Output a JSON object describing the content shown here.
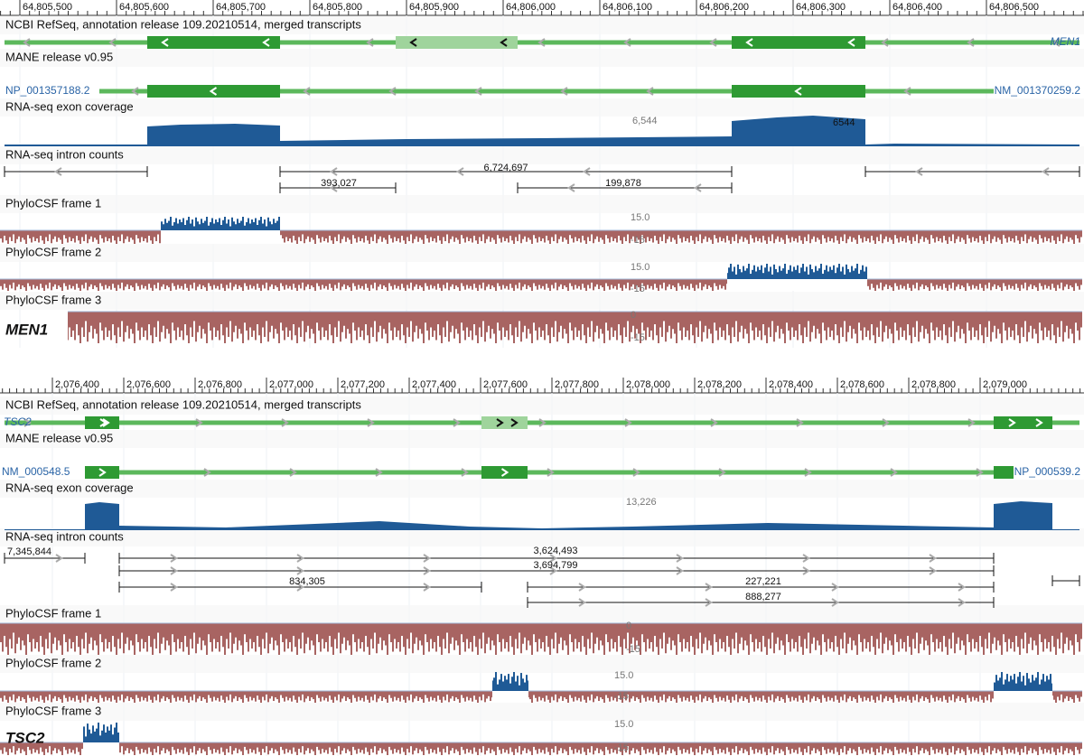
{
  "panels": [
    {
      "ruler": [
        "64,805,500",
        "64,805,600",
        "64,805,700",
        "64,805,800",
        "64,805,900",
        "64,806,000",
        "64,806,100",
        "64,806,200",
        "64,806,300",
        "64,806,400",
        "64,806,500"
      ],
      "refseq_title": "NCBI RefSeq, annotation release 109.20210514, merged transcripts",
      "transcript_label": "MEN1",
      "mane_title": "MANE release v0.95",
      "mane_labels": [
        "NP_001357188.2",
        "NM_001370259.2"
      ],
      "coverage_title": "RNA-seq exon coverage",
      "coverage_max": "6,544",
      "coverage_peak": "6544",
      "intron_title": "RNA-seq intron counts",
      "intron_counts": [
        "6,724,697",
        "393,027",
        "199,878"
      ],
      "phylo": [
        {
          "title": "PhyloCSF frame 1",
          "scale": [
            "15.0",
            "-15"
          ]
        },
        {
          "title": "PhyloCSF frame 2",
          "scale": [
            "15.0",
            "-15"
          ]
        },
        {
          "title": "PhyloCSF frame 3",
          "scale": [
            "0",
            "-15"
          ]
        }
      ],
      "gene": "MEN1"
    },
    {
      "ruler": [
        "2,076,400",
        "2,076,600",
        "2,076,800",
        "2,077,000",
        "2,077,200",
        "2,077,400",
        "2,077,600",
        "2,077,800",
        "2,078,000",
        "2,078,200",
        "2,078,400",
        "2,078,600",
        "2,078,800",
        "2,079,000"
      ],
      "refseq_title": "NCBI RefSeq, annotation release 109.20210514, merged transcripts",
      "transcript_label": "TSC2",
      "mane_title": "MANE release v0.95",
      "mane_labels": [
        "NM_000548.5",
        "NP_000539.2"
      ],
      "coverage_title": "RNA-seq exon coverage",
      "coverage_max": "13,226",
      "intron_title": "RNA-seq intron counts",
      "intron_counts": [
        "7,345,844",
        "3,624,493",
        "3,694,799",
        "834,305",
        "227,221",
        "888,277"
      ],
      "phylo": [
        {
          "title": "PhyloCSF frame 1",
          "scale": [
            "0",
            "-15"
          ]
        },
        {
          "title": "PhyloCSF frame 2",
          "scale": [
            "15.0",
            "-15"
          ]
        },
        {
          "title": "PhyloCSF frame 3",
          "scale": [
            "15.0",
            "-15"
          ]
        }
      ],
      "gene": "TSC2"
    }
  ]
}
